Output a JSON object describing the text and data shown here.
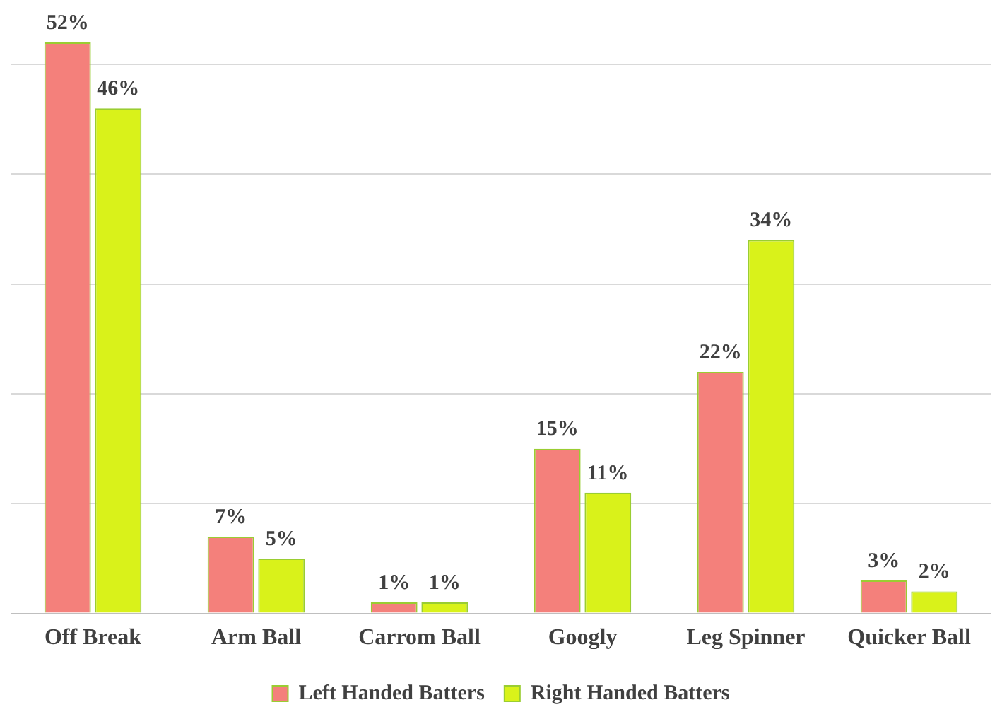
{
  "chart_data": {
    "type": "bar",
    "categories": [
      "Off Break",
      "Arm Ball",
      "Carrom Ball",
      "Googly",
      "Leg Spinner",
      "Quicker Ball"
    ],
    "series": [
      {
        "name": "Left Handed Batters",
        "color": "#f4807b",
        "values": [
          52,
          7,
          1,
          15,
          22,
          3
        ],
        "value_labels": [
          "52%",
          "7%",
          "1%",
          "15%",
          "22%",
          "3%"
        ]
      },
      {
        "name": "Right Handed Batters",
        "color": "#d9f21a",
        "values": [
          46,
          5,
          1,
          11,
          34,
          2
        ],
        "value_labels": [
          "46%",
          "5%",
          "1%",
          "11%",
          "34%",
          "2%"
        ]
      }
    ],
    "yticks": [
      {
        "value": 0,
        "label": null
      },
      {
        "value": 10,
        "label": null
      },
      {
        "value": 20,
        "label": null
      },
      {
        "value": 30,
        "label": null
      },
      {
        "value": 40,
        "label": null
      },
      {
        "value": 50,
        "label": null
      }
    ],
    "tick_labels": "x",
    "grid": "y",
    "legend": "bottom"
  }
}
